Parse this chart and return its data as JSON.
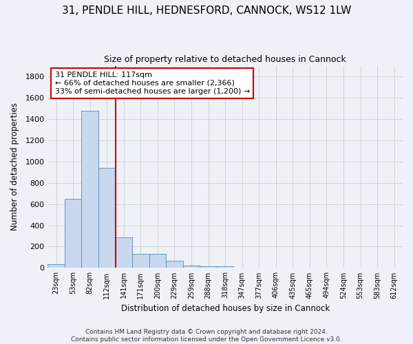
{
  "title_line1": "31, PENDLE HILL, HEDNESFORD, CANNOCK, WS12 1LW",
  "title_line2": "Size of property relative to detached houses in Cannock",
  "xlabel": "Distribution of detached houses by size in Cannock",
  "ylabel": "Number of detached properties",
  "bins": [
    "23sqm",
    "53sqm",
    "82sqm",
    "112sqm",
    "141sqm",
    "171sqm",
    "200sqm",
    "229sqm",
    "259sqm",
    "288sqm",
    "318sqm",
    "347sqm",
    "377sqm",
    "406sqm",
    "435sqm",
    "465sqm",
    "494sqm",
    "524sqm",
    "553sqm",
    "583sqm",
    "612sqm"
  ],
  "bar_values": [
    35,
    650,
    1480,
    940,
    290,
    130,
    130,
    65,
    25,
    15,
    15,
    0,
    0,
    0,
    0,
    0,
    0,
    0,
    0,
    0,
    0
  ],
  "bar_color": "#c8d8ee",
  "bar_edge_color": "#5588bb",
  "grid_color": "#cccccc",
  "vline_x_idx": 3,
  "vline_color": "#cc0000",
  "annotation_line1": "31 PENDLE HILL: 117sqm",
  "annotation_line2": "← 66% of detached houses are smaller (2,366)",
  "annotation_line3": "33% of semi-detached houses are larger (1,200) →",
  "annotation_box_color": "#ffffff",
  "annotation_box_edge": "#cc0000",
  "ylim": [
    0,
    1900
  ],
  "yticks": [
    0,
    200,
    400,
    600,
    800,
    1000,
    1200,
    1400,
    1600,
    1800
  ],
  "footer_line1": "Contains HM Land Registry data © Crown copyright and database right 2024.",
  "footer_line2": "Contains public sector information licensed under the Open Government Licence v3.0.",
  "bg_color": "#eef2f8"
}
